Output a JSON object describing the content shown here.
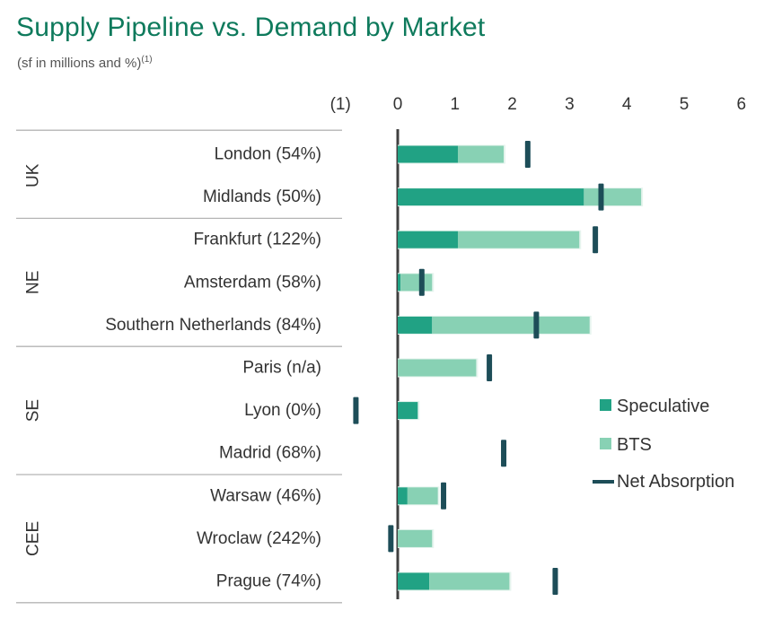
{
  "title": "Supply Pipeline vs. Demand by Market",
  "subtitle": "(sf in millions and %)",
  "subtitle_note": "(1)",
  "chart_data": {
    "type": "bar",
    "orientation": "horizontal",
    "stacked": true,
    "title": "Supply Pipeline vs. Demand by Market",
    "xlim": [
      -1,
      6
    ],
    "xticks": [
      -1,
      0,
      1,
      2,
      3,
      4,
      5,
      6
    ],
    "xtick_labels": [
      "(1)",
      "0",
      "1",
      "2",
      "3",
      "4",
      "5",
      "6"
    ],
    "groups": [
      {
        "name": "UK",
        "categories": [
          "London (54%)",
          "Midlands (50%)"
        ]
      },
      {
        "name": "NE",
        "categories": [
          "Frankfurt (122%)",
          "Amsterdam (58%)",
          "Southern Netherlands (84%)"
        ]
      },
      {
        "name": "SE",
        "categories": [
          "Paris (n/a)",
          "Lyon (0%)",
          "Madrid (68%)"
        ]
      },
      {
        "name": "CEE",
        "categories": [
          "Warsaw (46%)",
          "Wroclaw (242%)",
          "Prague (74%)"
        ]
      }
    ],
    "categories": [
      "London (54%)",
      "Midlands (50%)",
      "Frankfurt (122%)",
      "Amsterdam (58%)",
      "Southern Netherlands (84%)",
      "Paris (n/a)",
      "Lyon (0%)",
      "Madrid (68%)",
      "Warsaw (46%)",
      "Wroclaw (242%)",
      "Prague (74%)"
    ],
    "series": [
      {
        "name": "Speculative",
        "color": "#21a284",
        "values": [
          1.05,
          3.25,
          1.05,
          0.05,
          0.6,
          0.0,
          0.35,
          0.0,
          0.17,
          0.0,
          0.55
        ]
      },
      {
        "name": "BTS",
        "color": "#88d1b4",
        "values": [
          0.8,
          1.0,
          2.12,
          0.55,
          2.75,
          1.37,
          0.0,
          0.0,
          0.53,
          0.6,
          1.4
        ]
      },
      {
        "name": "Net Absorption",
        "type": "marker",
        "color": "#1d4d58",
        "values": [
          2.27,
          3.55,
          3.45,
          0.42,
          2.42,
          1.6,
          -0.73,
          1.85,
          0.8,
          -0.12,
          2.75
        ]
      }
    ],
    "legend": {
      "position": "right",
      "entries": [
        "Speculative",
        "BTS",
        "Net Absorption"
      ]
    },
    "grid": false
  }
}
